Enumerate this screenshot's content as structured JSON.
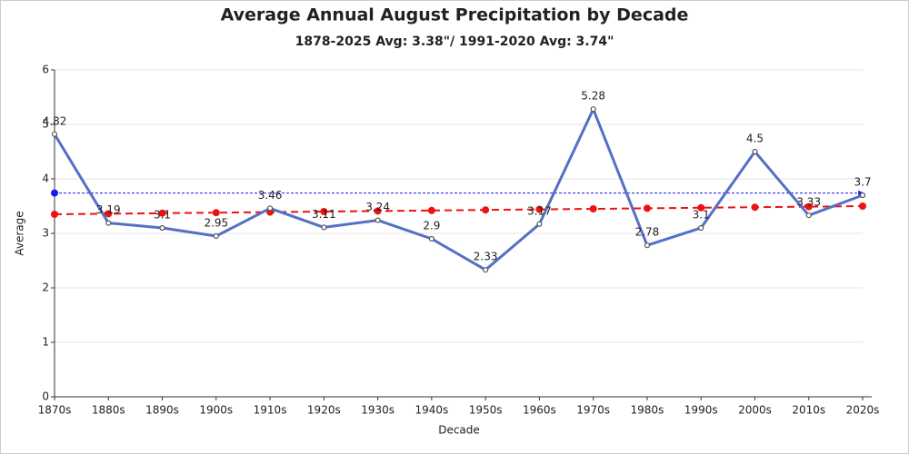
{
  "chart_data": {
    "type": "line",
    "title": "Average Annual August Precipitation by Decade",
    "subtitle": "1878-2025 Avg: 3.38\"/ 1991-2020 Avg: 3.74\"",
    "x_label": "Decade",
    "y_label": "Average",
    "categories": [
      "1870s",
      "1880s",
      "1890s",
      "1900s",
      "1910s",
      "1920s",
      "1930s",
      "1940s",
      "1950s",
      "1960s",
      "1970s",
      "1980s",
      "1990s",
      "2000s",
      "2010s",
      "2020s"
    ],
    "series": [
      {
        "color": "#5470c6",
        "values": [
          4.82,
          3.19,
          3.1,
          2.95,
          3.46,
          3.11,
          3.24,
          2.9,
          2.33,
          3.17,
          5.28,
          2.78,
          3.1,
          4.5,
          3.33,
          3.7
        ]
      }
    ],
    "trend": {
      "color": "#ee1111",
      "values": [
        3.35,
        3.36,
        3.37,
        3.38,
        3.39,
        3.4,
        3.41,
        3.42,
        3.43,
        3.44,
        3.45,
        3.46,
        3.47,
        3.48,
        3.49,
        3.5
      ]
    },
    "reference": {
      "color": "#1a1aee",
      "value": 3.74
    },
    "ylim": [
      0,
      6
    ],
    "yticks": [
      0,
      1,
      2,
      3,
      4,
      5,
      6
    ],
    "grid": true
  }
}
